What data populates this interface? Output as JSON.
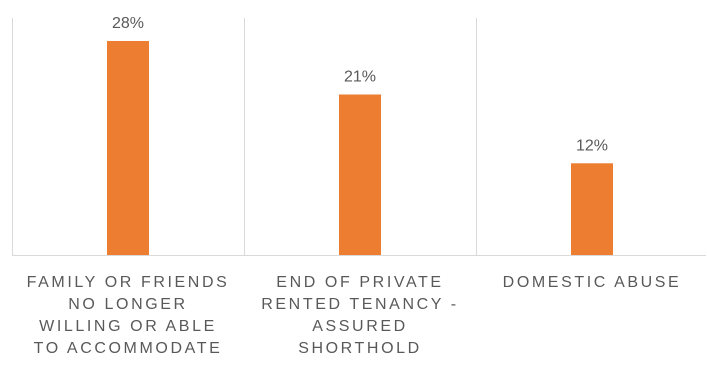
{
  "chart_data": {
    "type": "bar",
    "categories": [
      "FAMILY OR FRIENDS NO LONGER WILLING OR ABLE TO ACCOMMODATE",
      "END OF PRIVATE RENTED TENANCY - ASSURED SHORTHOLD",
      "DOMESTIC ABUSE"
    ],
    "category_lines": [
      [
        "FAMILY OR FRIENDS",
        "NO LONGER",
        "WILLING OR ABLE",
        "TO ACCOMMODATE"
      ],
      [
        "END OF PRIVATE",
        "RENTED TENANCY -",
        "ASSURED",
        "SHORTHOLD"
      ],
      [
        "DOMESTIC ABUSE"
      ]
    ],
    "values": [
      28,
      21,
      12
    ],
    "data_labels": [
      "28%",
      "21%",
      "12%"
    ],
    "unit": "%",
    "ylim": [
      0,
      30
    ],
    "title": "",
    "xlabel": "",
    "ylabel": "",
    "legend": "none",
    "grid": "vertical category separators",
    "colors": {
      "bar": "#ED7D31",
      "text": "#595959",
      "gridline": "#D9D9D9"
    }
  }
}
